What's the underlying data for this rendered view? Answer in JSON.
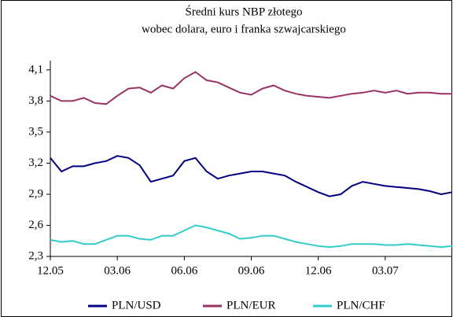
{
  "chart_data": {
    "type": "line",
    "title": [
      "Średni kurs NBP złotego",
      "wobec dolara, euro i franka szwajcarskiego"
    ],
    "categories": [
      "12.05",
      null,
      null,
      null,
      null,
      null,
      "03.06",
      null,
      null,
      null,
      null,
      null,
      "06.06",
      null,
      null,
      null,
      null,
      null,
      "09.06",
      null,
      null,
      null,
      null,
      null,
      "12.06",
      null,
      null,
      null,
      null,
      null,
      "03.07",
      null,
      null,
      null,
      null,
      null,
      null
    ],
    "series": [
      {
        "name": "PLN/USD",
        "color": "#000080",
        "values": [
          3.25,
          3.12,
          3.17,
          3.17,
          3.2,
          3.22,
          3.27,
          3.25,
          3.18,
          3.02,
          3.05,
          3.08,
          3.22,
          3.25,
          3.12,
          3.05,
          3.08,
          3.1,
          3.12,
          3.12,
          3.1,
          3.08,
          3.02,
          2.97,
          2.92,
          2.88,
          2.9,
          2.98,
          3.02,
          3.0,
          2.98,
          2.97,
          2.96,
          2.95,
          2.93,
          2.9,
          2.92
        ]
      },
      {
        "name": "PLN/EUR",
        "color": "#993366",
        "values": [
          3.85,
          3.8,
          3.8,
          3.83,
          3.78,
          3.77,
          3.85,
          3.92,
          3.93,
          3.88,
          3.95,
          3.92,
          4.02,
          4.08,
          4.0,
          3.98,
          3.93,
          3.88,
          3.86,
          3.92,
          3.95,
          3.9,
          3.87,
          3.85,
          3.84,
          3.83,
          3.85,
          3.87,
          3.88,
          3.9,
          3.88,
          3.9,
          3.87,
          3.88,
          3.88,
          3.87,
          3.87
        ]
      },
      {
        "name": "PLN/CHF",
        "color": "#33CCCC",
        "values": [
          2.46,
          2.44,
          2.45,
          2.42,
          2.42,
          2.46,
          2.5,
          2.5,
          2.47,
          2.46,
          2.5,
          2.5,
          2.55,
          2.6,
          2.58,
          2.55,
          2.52,
          2.47,
          2.48,
          2.5,
          2.5,
          2.47,
          2.44,
          2.42,
          2.4,
          2.39,
          2.4,
          2.42,
          2.42,
          2.42,
          2.41,
          2.41,
          2.42,
          2.41,
          2.4,
          2.39,
          2.4
        ]
      }
    ],
    "ylim": [
      2.3,
      4.19
    ],
    "yticks": [
      {
        "value": 2.3,
        "label": "2,3"
      },
      {
        "value": 2.6,
        "label": "2,6"
      },
      {
        "value": 2.9,
        "label": "2,9"
      },
      {
        "value": 3.2,
        "label": "3,2"
      },
      {
        "value": 3.5,
        "label": "3,5"
      },
      {
        "value": 3.8,
        "label": "3,8"
      },
      {
        "value": 4.1,
        "label": "4,1"
      }
    ],
    "legend": "bottom"
  }
}
